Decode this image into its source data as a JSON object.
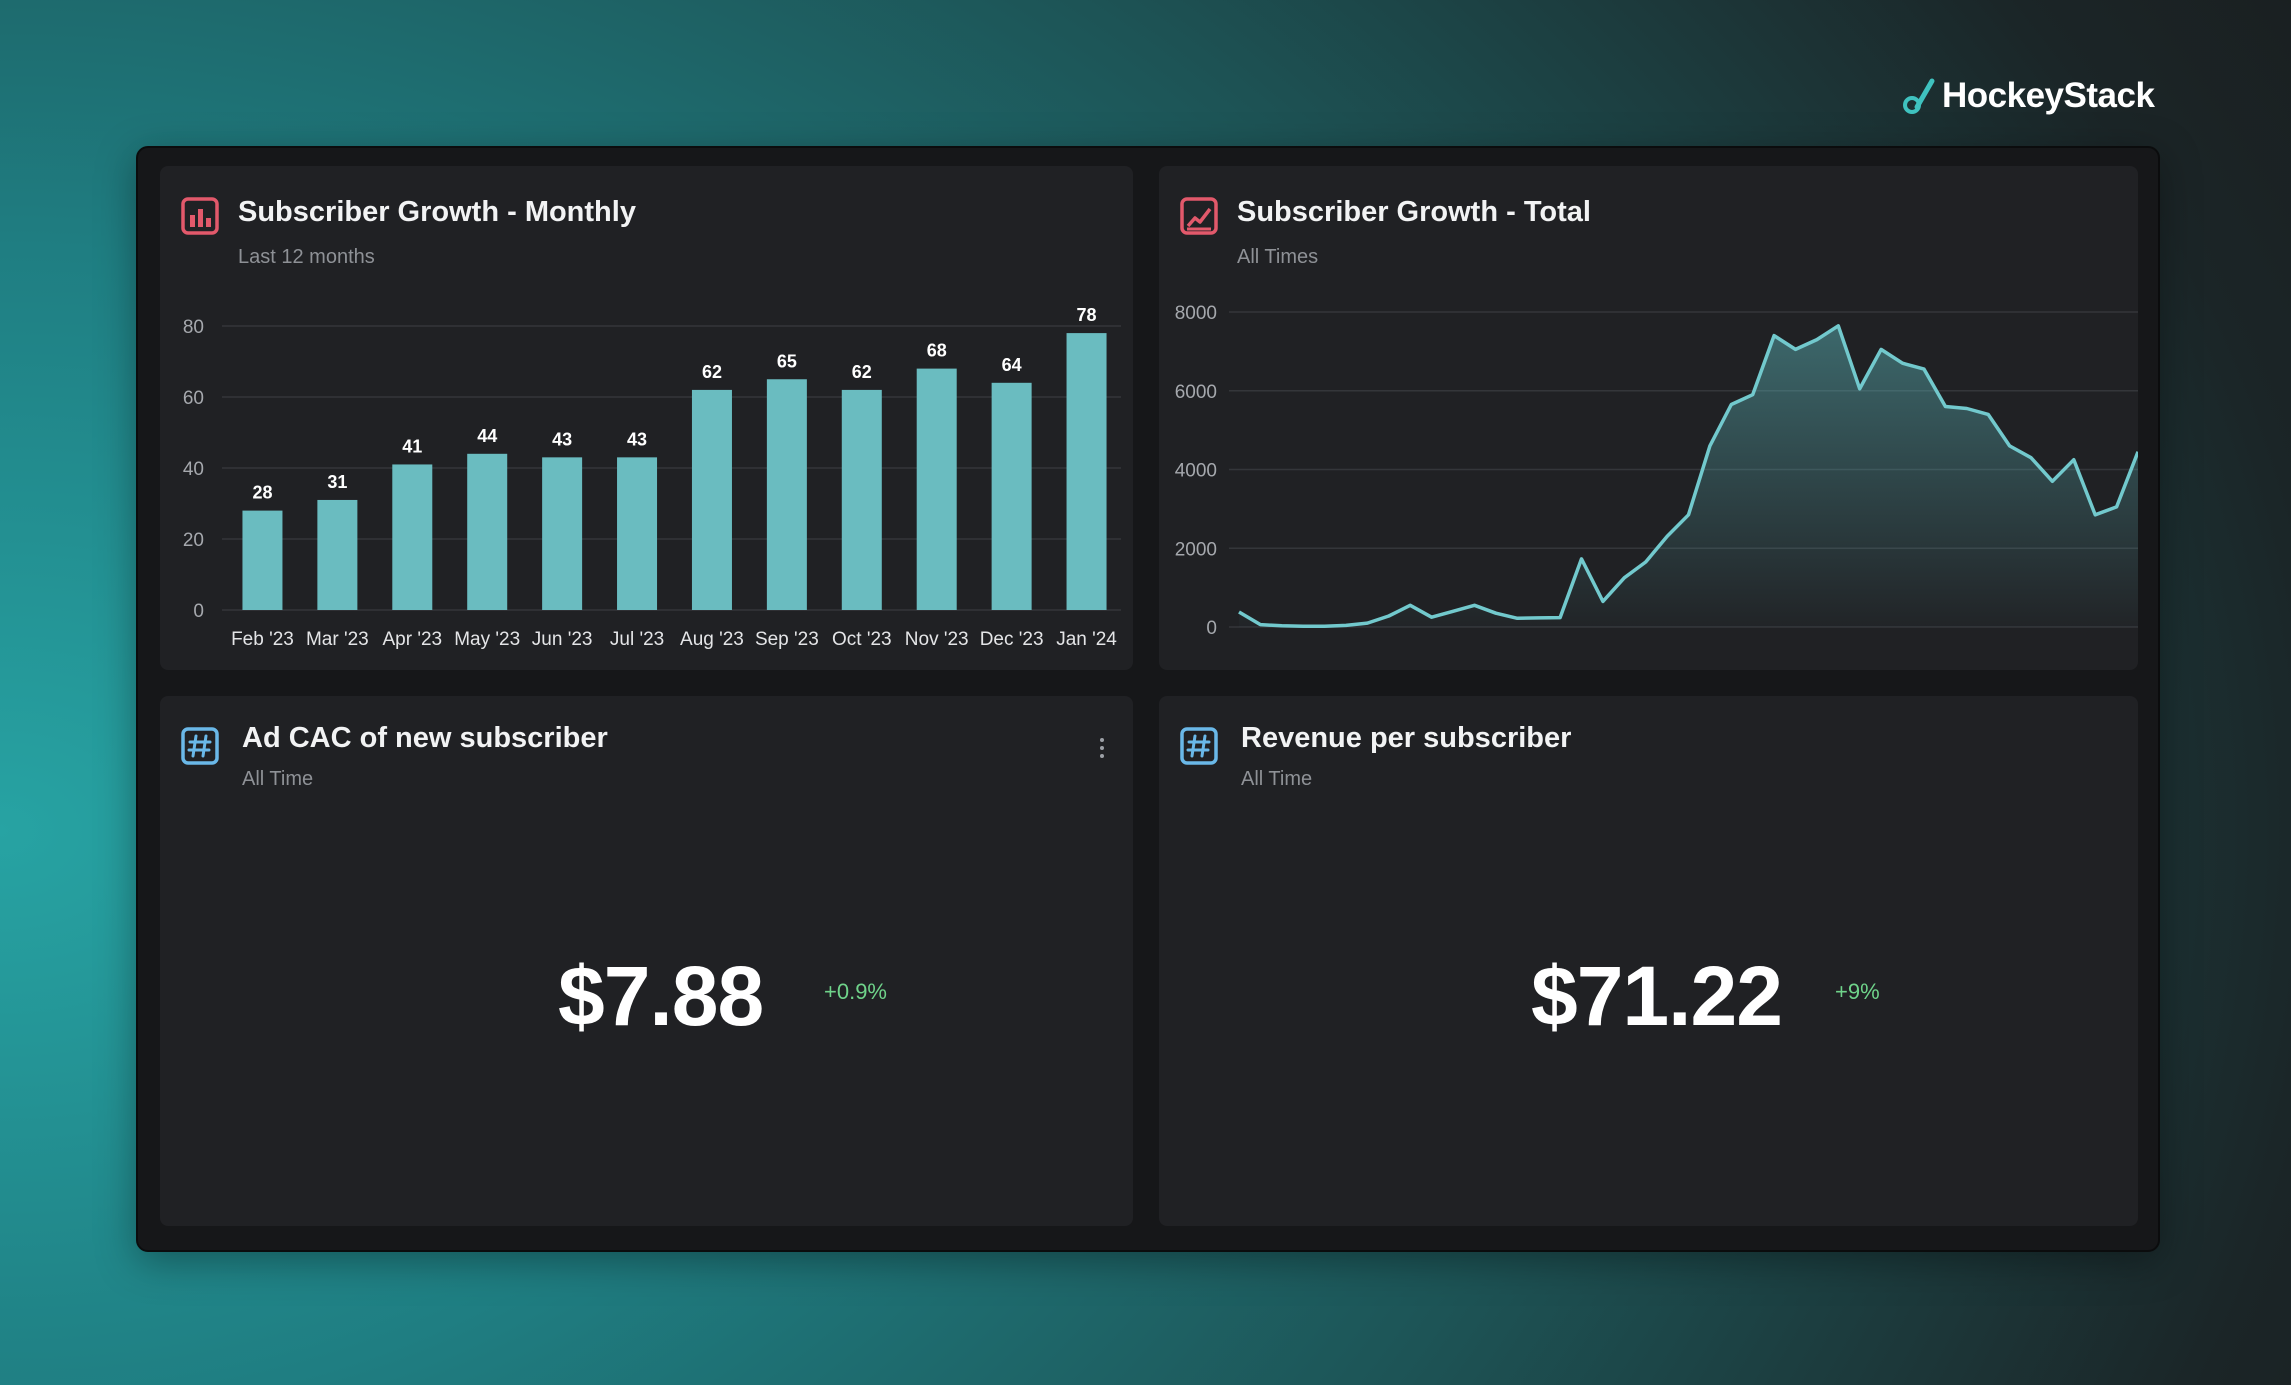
{
  "brand": {
    "name": "HockeyStack",
    "logo_icon": "hockey-stick-icon"
  },
  "colors": {
    "bar": "#6abcc0",
    "line": "#72c9cd",
    "positive_delta": "#6fd38a",
    "icon_chart_bg": "#e2596b",
    "icon_number_bg": "#6ab8e8"
  },
  "cards": {
    "monthly": {
      "title": "Subscriber Growth - Monthly",
      "subtitle": "Last 12 months",
      "icon": "bar-chart-icon"
    },
    "total": {
      "title": "Subscriber Growth - Total",
      "subtitle": "All Times",
      "icon": "line-chart-icon"
    },
    "cac": {
      "title": "Ad CAC of new subscriber",
      "subtitle": "All Time",
      "icon": "hash-icon",
      "value": "$7.88",
      "delta": "+0.9%",
      "menu_icon": "kebab-menu-icon"
    },
    "revenue": {
      "title": "Revenue per subscriber",
      "subtitle": "All Time",
      "icon": "hash-icon",
      "value": "$71.22",
      "delta": "+9%"
    }
  },
  "chart_data": [
    {
      "type": "bar",
      "categories": [
        "Feb '23",
        "Mar '23",
        "Apr '23",
        "May '23",
        "Jun '23",
        "Jul '23",
        "Aug '23",
        "Sep '23",
        "Oct '23",
        "Nov '23",
        "Dec '23",
        "Jan '24"
      ],
      "values": [
        28,
        31,
        41,
        44,
        43,
        43,
        62,
        65,
        62,
        68,
        64,
        78
      ],
      "yticks": [
        0,
        20,
        40,
        60,
        80
      ],
      "ylim": [
        0,
        80
      ],
      "grid": true,
      "data_labels": true
    },
    {
      "type": "area",
      "values": [
        380,
        60,
        30,
        20,
        20,
        40,
        100,
        280,
        550,
        250,
        400,
        550,
        350,
        220,
        230,
        240,
        1730,
        650,
        1250,
        1650,
        2300,
        2850,
        4600,
        5650,
        5900,
        7400,
        7050,
        7300,
        7650,
        6050,
        7050,
        6700,
        6550,
        5600,
        5550,
        5400,
        4600,
        4300,
        3700,
        4250,
        2850,
        3050,
        4450
      ],
      "yticks": [
        0,
        2000,
        4000,
        6000,
        8000
      ],
      "ylim": [
        0,
        8000
      ],
      "grid": true
    }
  ]
}
